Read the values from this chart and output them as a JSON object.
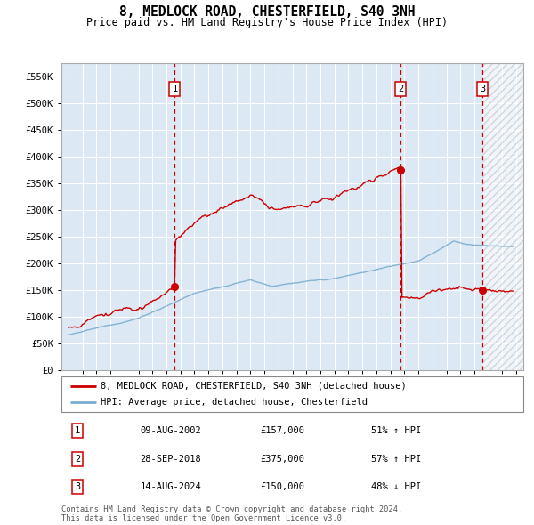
{
  "title": "8, MEDLOCK ROAD, CHESTERFIELD, S40 3NH",
  "subtitle": "Price paid vs. HM Land Registry's House Price Index (HPI)",
  "title_fontsize": 10.5,
  "subtitle_fontsize": 8.5,
  "ylim": [
    0,
    575000
  ],
  "yticks": [
    0,
    50000,
    100000,
    150000,
    200000,
    250000,
    300000,
    350000,
    400000,
    450000,
    500000,
    550000
  ],
  "ytick_labels": [
    "£0",
    "£50K",
    "£100K",
    "£150K",
    "£200K",
    "£250K",
    "£300K",
    "£350K",
    "£400K",
    "£450K",
    "£500K",
    "£550K"
  ],
  "xlim_start": 1994.5,
  "xlim_end": 2027.5,
  "bg_color": "#dce9f5",
  "grid_color": "#ffffff",
  "red_line_color": "#cc0000",
  "blue_line_color": "#7aadce",
  "sale_marker_color": "#cc0000",
  "sales": [
    {
      "num": 1,
      "year": 2002.6,
      "price": 157000,
      "label": "09-AUG-2002",
      "amount": "£157,000",
      "pct": "51% ↑ HPI"
    },
    {
      "num": 2,
      "year": 2018.75,
      "price": 375000,
      "label": "28-SEP-2018",
      "amount": "£375,000",
      "pct": "57% ↑ HPI"
    },
    {
      "num": 3,
      "year": 2024.6,
      "price": 150000,
      "label": "14-AUG-2024",
      "amount": "£150,000",
      "pct": "48% ↓ HPI"
    }
  ],
  "legend_line1": "8, MEDLOCK ROAD, CHESTERFIELD, S40 3NH (detached house)",
  "legend_line2": "HPI: Average price, detached house, Chesterfield",
  "footer": "Contains HM Land Registry data © Crown copyright and database right 2024.\nThis data is licensed under the Open Government Licence v3.0.",
  "hatch_start_year": 2024.6,
  "xticks_start": 1995,
  "xticks_end": 2027
}
